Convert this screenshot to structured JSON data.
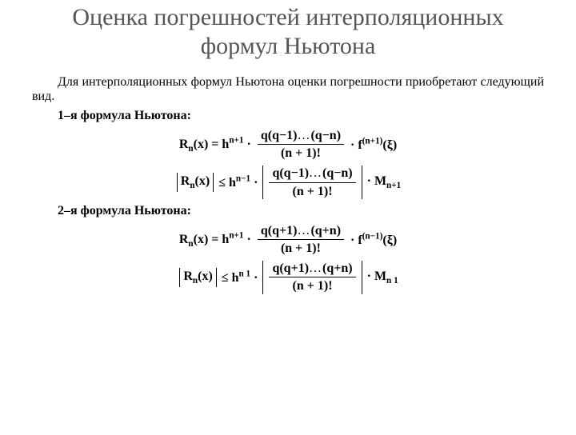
{
  "title": "Оценка погрешностей интерполяционных формул Ньютона",
  "intro": "Для интерполяционных формул Ньютона оценки погрешности приобретают следующий вид.",
  "sub1": "1–я формула Ньютона:",
  "sub2": "2–я формула Ньютона:",
  "sym": {
    "R": "R",
    "n": "n",
    "x": "x",
    "h": "h",
    "np1": "n+1",
    "nm1": "n−1",
    "q": "q",
    "qm1": "q−1",
    "qmn": "q−n",
    "qp1": "q+1",
    "qpn": "q+n",
    "np1f": "(n + 1)!",
    "f": "f",
    "sup_np1": "(n+1)",
    "sup_nm1": "(n−1)",
    "xi": "ξ",
    "M": "M",
    "Mn1": "n+1",
    "Mn_1": "n  1",
    "le": "≤",
    "eq": "=",
    "cdot": "·",
    "n_1": "n−1",
    "n_sp1": "n  1",
    "dots": "…"
  }
}
